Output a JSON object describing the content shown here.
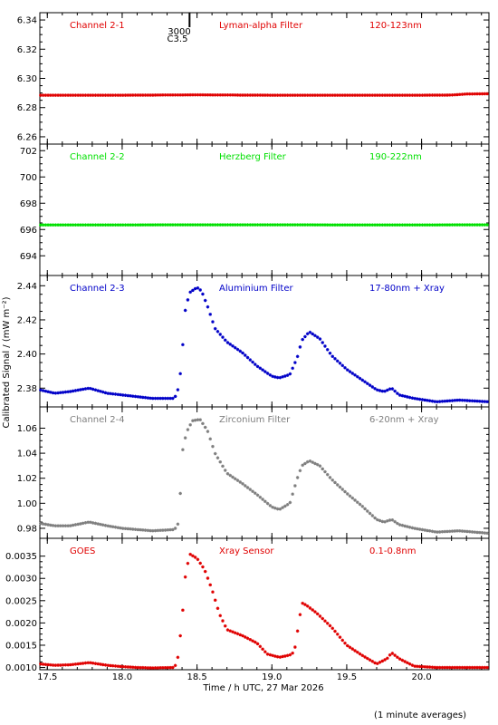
{
  "chart_data": {
    "type": "scatter",
    "x_range": [
      17.45,
      20.45
    ],
    "x_ticks": [
      17.5,
      18.0,
      18.5,
      19.0,
      19.5,
      20.0
    ],
    "x_tick_labels": [
      "17.5",
      "18.0",
      "18.5",
      "19.0",
      "19.5",
      "20.0"
    ],
    "xlabel": "Time / h UTC, 27 Mar 2026",
    "ylabel": "Calibrated Signal / (mW m⁻²)",
    "footnote": "(1 minute averages)",
    "marker_labels": [
      "3000",
      "C3.5"
    ],
    "marker_x": 18.45,
    "colors": {
      "ch1": "#e00000",
      "ch2": "#00e000",
      "ch3": "#0000c8",
      "ch4": "#7f7f7f",
      "goes": "#e00000",
      "frame": "#000000"
    },
    "panels": [
      {
        "labels": [
          "Channel 2-1",
          "Lyman-alpha Filter",
          "120-123nm"
        ],
        "color": "#e00000",
        "ylim": [
          6.255,
          6.345
        ],
        "yticks": [
          6.26,
          6.28,
          6.3,
          6.32,
          6.34
        ],
        "ytick_labels": [
          "6.26",
          "6.28",
          "6.30",
          "6.32",
          "6.34"
        ],
        "series": [
          [
            17.45,
            6.2885
          ],
          [
            18.0,
            6.2885
          ],
          [
            18.5,
            6.2887
          ],
          [
            19.0,
            6.2885
          ],
          [
            19.5,
            6.2885
          ],
          [
            20.0,
            6.2885
          ],
          [
            20.2,
            6.2886
          ],
          [
            20.3,
            6.2893
          ],
          [
            20.45,
            6.2895
          ]
        ]
      },
      {
        "labels": [
          "Channel 2-2",
          "Herzberg Filter",
          "190-222nm"
        ],
        "color": "#00e000",
        "ylim": [
          692.5,
          702.5
        ],
        "yticks": [
          694,
          696,
          698,
          700,
          702
        ],
        "ytick_labels": [
          "694",
          "696",
          "698",
          "700",
          "702"
        ],
        "series": [
          [
            17.45,
            696.35
          ],
          [
            18.0,
            696.35
          ],
          [
            18.5,
            696.36
          ],
          [
            19.0,
            696.36
          ],
          [
            19.5,
            696.35
          ],
          [
            20.0,
            696.35
          ],
          [
            20.45,
            696.36
          ]
        ]
      },
      {
        "labels": [
          "Channel 2-3",
          "Aluminium Filter",
          "17-80nm + Xray"
        ],
        "color": "#0000c8",
        "ylim": [
          2.369,
          2.446
        ],
        "yticks": [
          2.38,
          2.4,
          2.42,
          2.44
        ],
        "ytick_labels": [
          "2.38",
          "2.40",
          "2.42",
          "2.44"
        ],
        "series": [
          [
            17.45,
            2.379
          ],
          [
            17.55,
            2.377
          ],
          [
            17.65,
            2.378
          ],
          [
            17.78,
            2.38
          ],
          [
            17.9,
            2.377
          ],
          [
            18.0,
            2.376
          ],
          [
            18.1,
            2.375
          ],
          [
            18.2,
            2.374
          ],
          [
            18.35,
            2.374
          ],
          [
            18.38,
            2.381
          ],
          [
            18.4,
            2.399
          ],
          [
            18.42,
            2.425
          ],
          [
            18.45,
            2.436
          ],
          [
            18.5,
            2.439
          ],
          [
            18.53,
            2.437
          ],
          [
            18.57,
            2.428
          ],
          [
            18.62,
            2.415
          ],
          [
            18.7,
            2.407
          ],
          [
            18.8,
            2.401
          ],
          [
            18.9,
            2.393
          ],
          [
            19.0,
            2.387
          ],
          [
            19.05,
            2.386
          ],
          [
            19.12,
            2.388
          ],
          [
            19.17,
            2.398
          ],
          [
            19.2,
            2.408
          ],
          [
            19.25,
            2.413
          ],
          [
            19.32,
            2.409
          ],
          [
            19.4,
            2.399
          ],
          [
            19.5,
            2.391
          ],
          [
            19.6,
            2.385
          ],
          [
            19.7,
            2.379
          ],
          [
            19.75,
            2.378
          ],
          [
            19.8,
            2.38
          ],
          [
            19.85,
            2.376
          ],
          [
            19.95,
            2.374
          ],
          [
            20.1,
            2.372
          ],
          [
            20.25,
            2.373
          ],
          [
            20.45,
            2.372
          ]
        ]
      },
      {
        "labels": [
          "Channel 2-4",
          "Zirconium Filter",
          "6-20nm + Xray"
        ],
        "color": "#7f7f7f",
        "ylim": [
          0.972,
          1.077
        ],
        "yticks": [
          0.98,
          1.0,
          1.02,
          1.04,
          1.06
        ],
        "ytick_labels": [
          "0.98",
          "1.00",
          "1.02",
          "1.04",
          "1.06"
        ],
        "series": [
          [
            17.45,
            0.984
          ],
          [
            17.55,
            0.982
          ],
          [
            17.65,
            0.982
          ],
          [
            17.78,
            0.985
          ],
          [
            17.9,
            0.982
          ],
          [
            18.0,
            0.98
          ],
          [
            18.1,
            0.979
          ],
          [
            18.2,
            0.978
          ],
          [
            18.35,
            0.979
          ],
          [
            18.38,
            0.985
          ],
          [
            18.4,
            1.04
          ],
          [
            18.43,
            1.057
          ],
          [
            18.47,
            1.066
          ],
          [
            18.52,
            1.067
          ],
          [
            18.57,
            1.058
          ],
          [
            18.62,
            1.04
          ],
          [
            18.7,
            1.024
          ],
          [
            18.8,
            1.016
          ],
          [
            18.9,
            1.007
          ],
          [
            19.0,
            0.997
          ],
          [
            19.05,
            0.995
          ],
          [
            19.12,
            1.0
          ],
          [
            19.17,
            1.02
          ],
          [
            19.2,
            1.03
          ],
          [
            19.25,
            1.034
          ],
          [
            19.32,
            1.03
          ],
          [
            19.4,
            1.019
          ],
          [
            19.5,
            1.008
          ],
          [
            19.6,
            0.998
          ],
          [
            19.7,
            0.987
          ],
          [
            19.75,
            0.985
          ],
          [
            19.8,
            0.987
          ],
          [
            19.85,
            0.983
          ],
          [
            19.95,
            0.98
          ],
          [
            20.1,
            0.977
          ],
          [
            20.25,
            0.978
          ],
          [
            20.45,
            0.976
          ]
        ]
      },
      {
        "labels": [
          "GOES",
          "Xray Sensor",
          "0.1-0.8nm"
        ],
        "color": "#e00000",
        "ylim": [
          0.00095,
          0.0039
        ],
        "yticks": [
          0.001,
          0.0015,
          0.002,
          0.0025,
          0.003,
          0.0035
        ],
        "ytick_labels": [
          "0.0010",
          "0.0015",
          "0.0020",
          "0.0025",
          "0.0030",
          "0.0035"
        ],
        "series": [
          [
            17.45,
            0.00108
          ],
          [
            17.55,
            0.00105
          ],
          [
            17.65,
            0.00106
          ],
          [
            17.78,
            0.00111
          ],
          [
            17.9,
            0.00105
          ],
          [
            18.0,
            0.00102
          ],
          [
            18.1,
            0.001
          ],
          [
            18.2,
            0.00099
          ],
          [
            18.35,
            0.001
          ],
          [
            18.37,
            0.00118
          ],
          [
            18.4,
            0.00205
          ],
          [
            18.42,
            0.003
          ],
          [
            18.45,
            0.00355
          ],
          [
            18.5,
            0.00345
          ],
          [
            18.55,
            0.0032
          ],
          [
            18.6,
            0.00275
          ],
          [
            18.65,
            0.0022
          ],
          [
            18.7,
            0.00185
          ],
          [
            18.8,
            0.00172
          ],
          [
            18.9,
            0.00155
          ],
          [
            18.97,
            0.0013
          ],
          [
            19.05,
            0.00123
          ],
          [
            19.12,
            0.00128
          ],
          [
            19.15,
            0.00135
          ],
          [
            19.18,
            0.002
          ],
          [
            19.2,
            0.00245
          ],
          [
            19.23,
            0.0024
          ],
          [
            19.3,
            0.00222
          ],
          [
            19.4,
            0.0019
          ],
          [
            19.5,
            0.0015
          ],
          [
            19.6,
            0.00128
          ],
          [
            19.7,
            0.00108
          ],
          [
            19.77,
            0.0012
          ],
          [
            19.8,
            0.00133
          ],
          [
            19.85,
            0.0012
          ],
          [
            19.95,
            0.00103
          ],
          [
            20.1,
            0.001
          ],
          [
            20.25,
            0.001
          ],
          [
            20.45,
            0.001
          ]
        ]
      }
    ]
  }
}
